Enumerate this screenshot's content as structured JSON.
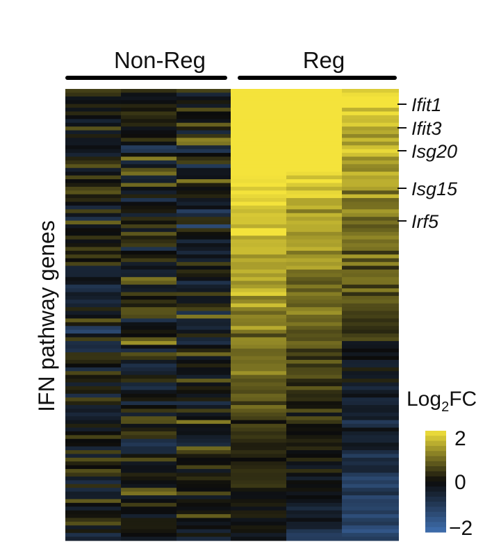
{
  "chart_data": {
    "type": "heatmap",
    "y_axis_label": "IFN pathway genes",
    "groups": [
      {
        "label": "Non-Reg",
        "columns": 3
      },
      {
        "label": "Reg",
        "columns": 3
      }
    ],
    "gene_labels": [
      "Ifit1",
      "Ifit3",
      "Isg20",
      "Isg15",
      "Irf5"
    ],
    "colorbar": {
      "title_prefix": "Log",
      "title_sub": "2",
      "title_suffix": "FC",
      "min": -2,
      "max": 2,
      "ticks": [
        "2",
        "0",
        "−2"
      ],
      "colors": {
        "low": "#3f6fb0",
        "mid": "#0b0b0b",
        "high": "#f4e33b"
      }
    },
    "row_count": 120,
    "note_values": "log2 fold change per gene (rows) per sample (columns); Reg samples strongly up-regulated at top"
  }
}
